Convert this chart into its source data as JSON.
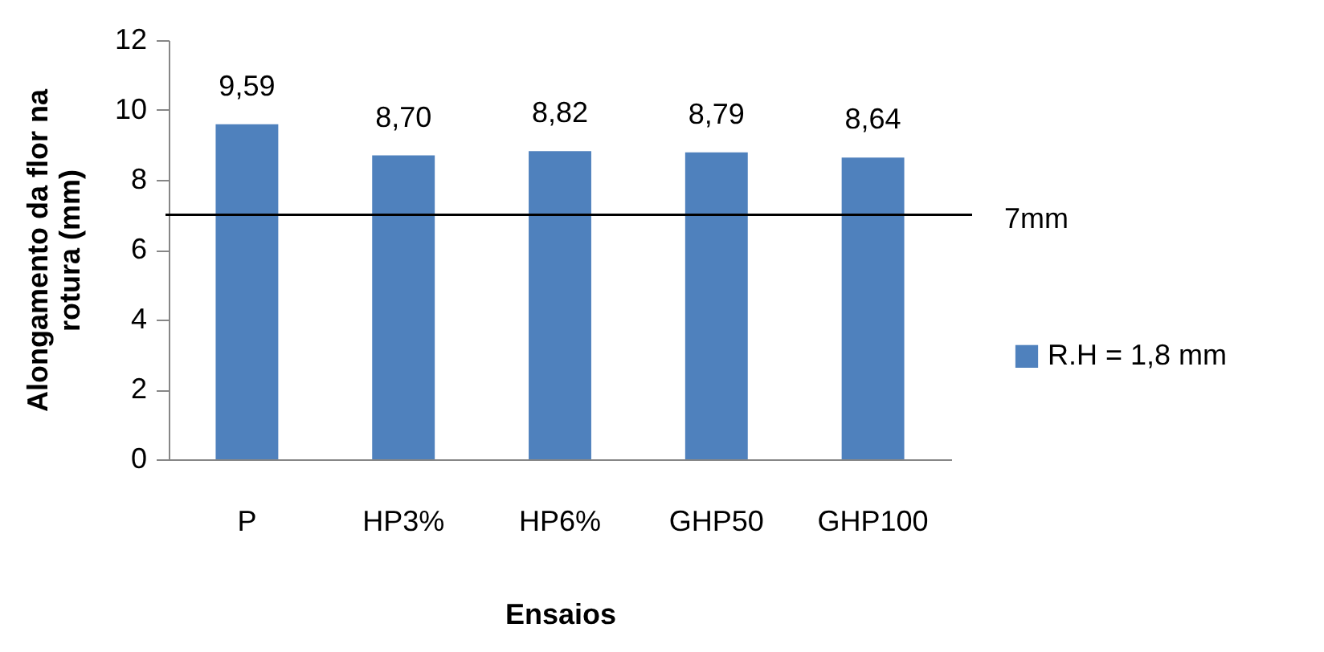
{
  "chart_data": {
    "type": "bar",
    "xlabel": "Ensaios",
    "ylabel": "Alongamento da flor na rotura (mm)",
    "categories": [
      "P",
      "HP3%",
      "HP6%",
      "GHP50",
      "GHP100"
    ],
    "series": [
      {
        "name": "R.H = 1,8 mm",
        "color": "#4f81bd",
        "values": [
          9.59,
          8.7,
          8.82,
          8.79,
          8.64
        ],
        "value_labels": [
          "9,59",
          "8,70",
          "8,82",
          "8,79",
          "8,64"
        ]
      }
    ],
    "ylim": [
      0,
      12
    ],
    "yticks": [
      0,
      2,
      4,
      6,
      8,
      10,
      12
    ],
    "ref_lines": [
      {
        "axis": "y",
        "value": 7,
        "label": "7mm",
        "color": "#000000"
      }
    ],
    "grid": false,
    "legend": "right"
  }
}
